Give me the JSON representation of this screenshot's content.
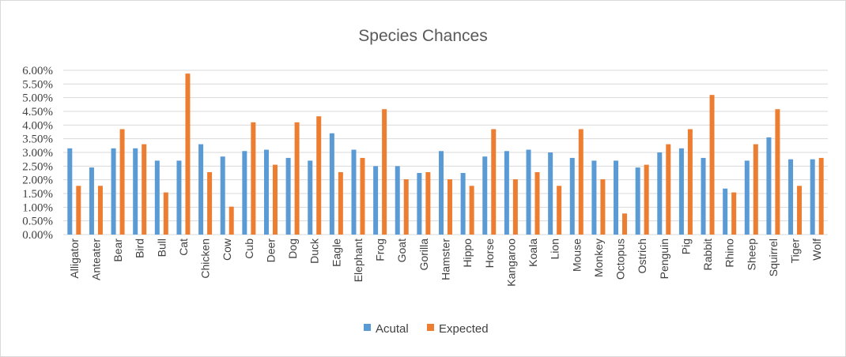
{
  "chart_data": {
    "type": "bar",
    "title": "Species Chances",
    "xlabel": "",
    "ylabel": "",
    "ylim": [
      0,
      0.06
    ],
    "yticks": [
      "0.00%",
      "0.50%",
      "1.00%",
      "1.50%",
      "2.00%",
      "2.50%",
      "3.00%",
      "3.50%",
      "4.00%",
      "4.50%",
      "5.00%",
      "5.50%",
      "6.00%"
    ],
    "grid": true,
    "legend_position": "bottom",
    "categories": [
      "Alligator",
      "Anteater",
      "Bear",
      "Bird",
      "Bull",
      "Cat",
      "Chicken",
      "Cow",
      "Cub",
      "Deer",
      "Dog",
      "Duck",
      "Eagle",
      "Elephant",
      "Frog",
      "Goat",
      "Gorilla",
      "Hamster",
      "Hippo",
      "Horse",
      "Kangaroo",
      "Koala",
      "Lion",
      "Mouse",
      "Monkey",
      "Octopus",
      "Ostrich",
      "Penguin",
      "Pig",
      "Rabbit",
      "Rhino",
      "Sheep",
      "Squirrel",
      "Tiger",
      "Wolf"
    ],
    "series": [
      {
        "name": "Acutal",
        "color": "#5b9bd5",
        "values": [
          0.0315,
          0.0245,
          0.0315,
          0.0315,
          0.027,
          0.027,
          0.033,
          0.0285,
          0.0305,
          0.031,
          0.028,
          0.027,
          0.037,
          0.031,
          0.025,
          0.025,
          0.0225,
          0.0305,
          0.0225,
          0.0285,
          0.0305,
          0.031,
          0.03,
          0.028,
          0.027,
          0.027,
          0.0245,
          0.03,
          0.0315,
          0.028,
          0.0168,
          0.027,
          0.0355,
          0.0275,
          0.0275
        ]
      },
      {
        "name": "Expected",
        "color": "#ed7d31",
        "values": [
          0.0178,
          0.0178,
          0.0385,
          0.033,
          0.0154,
          0.0588,
          0.0228,
          0.0102,
          0.041,
          0.0255,
          0.041,
          0.0432,
          0.0228,
          0.028,
          0.0458,
          0.0202,
          0.0228,
          0.0202,
          0.0178,
          0.0385,
          0.0202,
          0.0228,
          0.0178,
          0.0385,
          0.0202,
          0.0077,
          0.0255,
          0.033,
          0.0385,
          0.051,
          0.0154,
          0.033,
          0.0458,
          0.0178,
          0.028
        ]
      }
    ]
  }
}
